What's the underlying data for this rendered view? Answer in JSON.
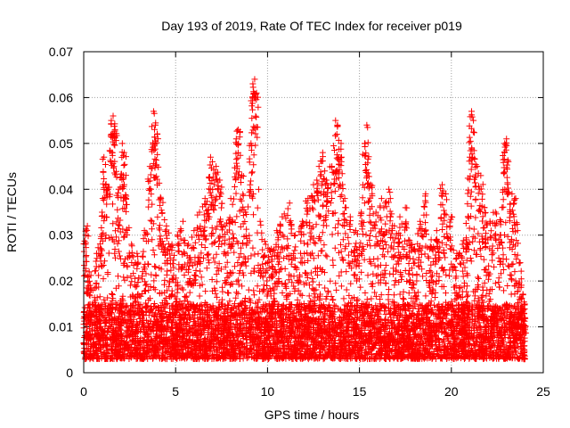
{
  "chart_data": {
    "type": "scatter",
    "title": "Day 193 of 2019, Rate Of TEC Index for receiver p019",
    "xlabel": "GPS time / hours",
    "ylabel": "ROTI / TECUs",
    "xlim": [
      0,
      25
    ],
    "ylim": [
      0,
      0.07
    ],
    "x_ticks": [
      0,
      5,
      10,
      15,
      20,
      25
    ],
    "x_tick_labels": [
      "0",
      "5",
      "10",
      "15",
      "20",
      "25"
    ],
    "y_ticks": [
      0,
      0.01,
      0.02,
      0.03,
      0.04,
      0.05,
      0.06,
      0.07
    ],
    "y_tick_labels": [
      "0",
      "0.01",
      "0.02",
      "0.03",
      "0.04",
      "0.05",
      "0.06",
      "0.07"
    ],
    "grid": true,
    "marker": "plus",
    "marker_color": "#ff0000",
    "x_range_of_data": [
      0,
      24
    ],
    "baseline_band": [
      0.003,
      0.015
    ],
    "series": [
      {
        "values_note": "",
        "points": [
          [
            0.1,
            0.03
          ],
          [
            0.2,
            0.032
          ],
          [
            0.3,
            0.022
          ],
          [
            0.5,
            0.018
          ],
          [
            0.7,
            0.026
          ],
          [
            1.0,
            0.035
          ],
          [
            1.1,
            0.047
          ],
          [
            1.3,
            0.04
          ],
          [
            1.5,
            0.055
          ],
          [
            1.6,
            0.056
          ],
          [
            1.7,
            0.053
          ],
          [
            1.9,
            0.04
          ],
          [
            2.1,
            0.05
          ],
          [
            2.2,
            0.048
          ],
          [
            2.3,
            0.038
          ],
          [
            2.6,
            0.028
          ],
          [
            2.9,
            0.026
          ],
          [
            3.3,
            0.031
          ],
          [
            3.6,
            0.045
          ],
          [
            3.8,
            0.057
          ],
          [
            3.9,
            0.054
          ],
          [
            4.0,
            0.052
          ],
          [
            4.2,
            0.038
          ],
          [
            4.5,
            0.032
          ],
          [
            4.8,
            0.028
          ],
          [
            5.1,
            0.03
          ],
          [
            5.4,
            0.033
          ],
          [
            5.7,
            0.028
          ],
          [
            6.0,
            0.031
          ],
          [
            6.3,
            0.035
          ],
          [
            6.6,
            0.038
          ],
          [
            6.9,
            0.047
          ],
          [
            7.0,
            0.046
          ],
          [
            7.2,
            0.045
          ],
          [
            7.4,
            0.042
          ],
          [
            7.7,
            0.032
          ],
          [
            8.0,
            0.038
          ],
          [
            8.3,
            0.051
          ],
          [
            8.4,
            0.053
          ],
          [
            8.6,
            0.043
          ],
          [
            8.8,
            0.035
          ],
          [
            9.1,
            0.05
          ],
          [
            9.2,
            0.063
          ],
          [
            9.3,
            0.064
          ],
          [
            9.4,
            0.061
          ],
          [
            9.6,
            0.033
          ],
          [
            9.9,
            0.028
          ],
          [
            10.2,
            0.027
          ],
          [
            10.5,
            0.031
          ],
          [
            10.8,
            0.034
          ],
          [
            11.2,
            0.037
          ],
          [
            11.5,
            0.03
          ],
          [
            11.9,
            0.033
          ],
          [
            12.2,
            0.038
          ],
          [
            12.5,
            0.041
          ],
          [
            12.8,
            0.045
          ],
          [
            13.0,
            0.048
          ],
          [
            13.2,
            0.042
          ],
          [
            13.5,
            0.045
          ],
          [
            13.7,
            0.055
          ],
          [
            13.8,
            0.054
          ],
          [
            14.0,
            0.05
          ],
          [
            14.2,
            0.038
          ],
          [
            14.5,
            0.034
          ],
          [
            14.8,
            0.031
          ],
          [
            15.1,
            0.035
          ],
          [
            15.3,
            0.05
          ],
          [
            15.4,
            0.054
          ],
          [
            15.6,
            0.041
          ],
          [
            15.9,
            0.035
          ],
          [
            16.2,
            0.038
          ],
          [
            16.4,
            0.037
          ],
          [
            16.6,
            0.04
          ],
          [
            16.9,
            0.032
          ],
          [
            17.2,
            0.034
          ],
          [
            17.5,
            0.036
          ],
          [
            17.8,
            0.028
          ],
          [
            18.0,
            0.027
          ],
          [
            18.3,
            0.033
          ],
          [
            18.6,
            0.039
          ],
          [
            18.9,
            0.029
          ],
          [
            19.2,
            0.031
          ],
          [
            19.5,
            0.041
          ],
          [
            19.7,
            0.039
          ],
          [
            20.0,
            0.034
          ],
          [
            20.3,
            0.026
          ],
          [
            20.6,
            0.028
          ],
          [
            20.9,
            0.034
          ],
          [
            21.0,
            0.047
          ],
          [
            21.1,
            0.057
          ],
          [
            21.2,
            0.055
          ],
          [
            21.4,
            0.045
          ],
          [
            21.6,
            0.043
          ],
          [
            21.8,
            0.036
          ],
          [
            22.1,
            0.033
          ],
          [
            22.4,
            0.035
          ],
          [
            22.7,
            0.033
          ],
          [
            22.9,
            0.05
          ],
          [
            23.0,
            0.051
          ],
          [
            23.1,
            0.046
          ],
          [
            23.3,
            0.039
          ],
          [
            23.5,
            0.038
          ],
          [
            23.7,
            0.024
          ],
          [
            23.9,
            0.017
          ],
          [
            24.0,
            0.012
          ]
        ]
      }
    ]
  }
}
